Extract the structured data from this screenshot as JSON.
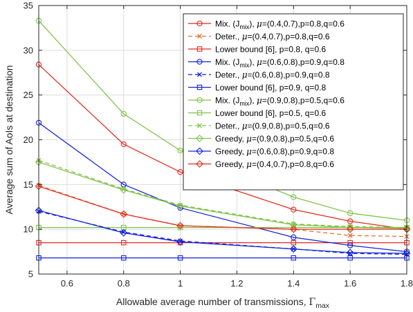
{
  "chart_data": {
    "type": "line",
    "xlabel": "Allowable average number of transmissions, Γ_max",
    "ylabel": "Average sum of AoIs at destination",
    "xlim": [
      0.5,
      1.8
    ],
    "ylim": [
      5,
      35
    ],
    "xticks": [
      0.6,
      0.8,
      1.0,
      1.2,
      1.4,
      1.6,
      1.8
    ],
    "xtick_labels": [
      "0.6",
      "0.8",
      "1",
      "1.2",
      "1.4",
      "1.6",
      "1.8"
    ],
    "yticks": [
      5,
      10,
      15,
      20,
      25,
      30,
      35
    ],
    "ytick_labels": [
      "5",
      "10",
      "15",
      "20",
      "25",
      "30",
      "35"
    ],
    "grid": true,
    "legend_position": "top-right",
    "x": [
      0.5,
      0.8,
      1.0,
      1.4,
      1.6,
      1.8
    ],
    "series": [
      {
        "name": "Mix. (J_mix), μ=(0.4,0.7),p=0.8,q=0.6",
        "color": "#e8261c",
        "dash": "solid",
        "marker": "circle",
        "values": [
          28.4,
          19.5,
          16.4,
          12.2,
          10.9,
          10.0
        ]
      },
      {
        "name": "Deter., μ=(0.4,0.7),p=0.8,q=0.6",
        "color": "#e66e28",
        "dash": "dashed",
        "marker": "x",
        "values": [
          14.9,
          11.7,
          10.4,
          10.0,
          9.3,
          9.2
        ]
      },
      {
        "name": "Lower bound [6], p=0.8, q=0.6",
        "color": "#e8261c",
        "dash": "solid",
        "marker": "square",
        "values": [
          8.5,
          8.5,
          8.5,
          8.5,
          8.5,
          8.5
        ]
      },
      {
        "name": "Mix. (J_mix), μ=(0.6,0.8),p=0.9,q=0.8",
        "color": "#1020e0",
        "dash": "solid",
        "marker": "circle",
        "values": [
          21.9,
          15.0,
          12.4,
          9.1,
          8.2,
          7.5
        ]
      },
      {
        "name": "Deter., μ=(0.6,0.8),p=0.9,q=0.8",
        "color": "#1020e0",
        "dash": "dashed",
        "marker": "x",
        "values": [
          12.0,
          9.7,
          8.7,
          7.8,
          7.3,
          7.2
        ]
      },
      {
        "name": "Lower bound [6], p=0.9, q=0.8",
        "color": "#1020e0",
        "dash": "solid",
        "marker": "square",
        "values": [
          6.8,
          6.8,
          6.8,
          6.8,
          6.8,
          6.8
        ]
      },
      {
        "name": "Mix. (J_mix), μ=(0.9,0.8),p=0.5,q=0.6",
        "color": "#7cc242",
        "dash": "solid",
        "marker": "circle",
        "values": [
          33.3,
          22.9,
          18.8,
          13.6,
          11.8,
          11.0
        ]
      },
      {
        "name": "Lower bound [6], p=0.5, q=0.6",
        "color": "#7cc242",
        "dash": "solid",
        "marker": "square",
        "values": [
          10.2,
          10.2,
          10.2,
          10.2,
          10.2,
          10.2
        ]
      },
      {
        "name": "Deter., μ=(0.9,0.8),p=0.5,q=0.6",
        "color": "#7cc242",
        "dash": "dashed",
        "marker": "x",
        "values": [
          17.7,
          14.5,
          12.7,
          10.6,
          10.3,
          10.2
        ]
      },
      {
        "name": "Greedy, μ=(0.9,0.8),p=0.5,q=0.6",
        "color": "#7cc242",
        "dash": "solid",
        "marker": "diamond",
        "values": [
          17.5,
          14.4,
          12.6,
          10.5,
          10.2,
          10.1
        ]
      },
      {
        "name": "Greedy, μ=(0.6,0.8),p=0.9,q=0.8",
        "color": "#1020e0",
        "dash": "solid",
        "marker": "diamond",
        "values": [
          12.1,
          9.6,
          8.6,
          7.8,
          7.4,
          7.3
        ]
      },
      {
        "name": "Greedy, μ=(0.4,0.7),p=0.8,q=0.6",
        "color": "#e8261c",
        "dash": "solid",
        "marker": "diamond",
        "values": [
          14.8,
          11.7,
          10.4,
          10.0,
          10.0,
          10.0
        ]
      }
    ],
    "legend_labels": [
      {
        "prefix": "Mix. (J",
        "sub": "mix",
        "mid": "), ",
        "mu": true,
        "suffix": "=(0.4,0.7),p=0.8,q=0.6"
      },
      {
        "prefix": "Deter., ",
        "sub": "",
        "mid": "",
        "mu": true,
        "suffix": "=(0.4,0.7),p=0.8,q=0.6"
      },
      {
        "prefix": "Lower bound [6], p=0.8, q=0.6",
        "sub": "",
        "mid": "",
        "mu": false,
        "suffix": ""
      },
      {
        "prefix": "Mix. (J",
        "sub": "mix",
        "mid": "), ",
        "mu": true,
        "suffix": "=(0.6,0.8),p=0.9,q=0.8"
      },
      {
        "prefix": "Deter., ",
        "sub": "",
        "mid": "",
        "mu": true,
        "suffix": "=(0.6,0.8),p=0.9,q=0.8"
      },
      {
        "prefix": "Lower bound [6], p=0.9, q=0.8",
        "sub": "",
        "mid": "",
        "mu": false,
        "suffix": ""
      },
      {
        "prefix": "Mix. (J",
        "sub": "mix",
        "mid": "), ",
        "mu": true,
        "suffix": "=(0.9,0.8),p=0.5,q=0.6"
      },
      {
        "prefix": "Lower bound [6], p=0.5, q=0.6",
        "sub": "",
        "mid": "",
        "mu": false,
        "suffix": ""
      },
      {
        "prefix": "Deter., ",
        "sub": "",
        "mid": "",
        "mu": true,
        "suffix": "=(0.9,0.8),p=0.5,q=0.6"
      },
      {
        "prefix": "Greedy, ",
        "sub": "",
        "mid": "",
        "mu": true,
        "suffix": "=(0.9,0.8),p=0.5,q=0.6"
      },
      {
        "prefix": "Greedy, ",
        "sub": "",
        "mid": "",
        "mu": true,
        "suffix": "=(0.6,0.8),p=0.9,q=0.8"
      },
      {
        "prefix": "Greedy, ",
        "sub": "",
        "mid": "",
        "mu": true,
        "suffix": "=(0.4,0.7),p=0.8,q=0.6"
      }
    ],
    "xlabel_parts": {
      "main": "Allowable average number of transmissions, ",
      "symbol": "Γ",
      "sub": "max"
    },
    "mu_symbol": "μ"
  }
}
